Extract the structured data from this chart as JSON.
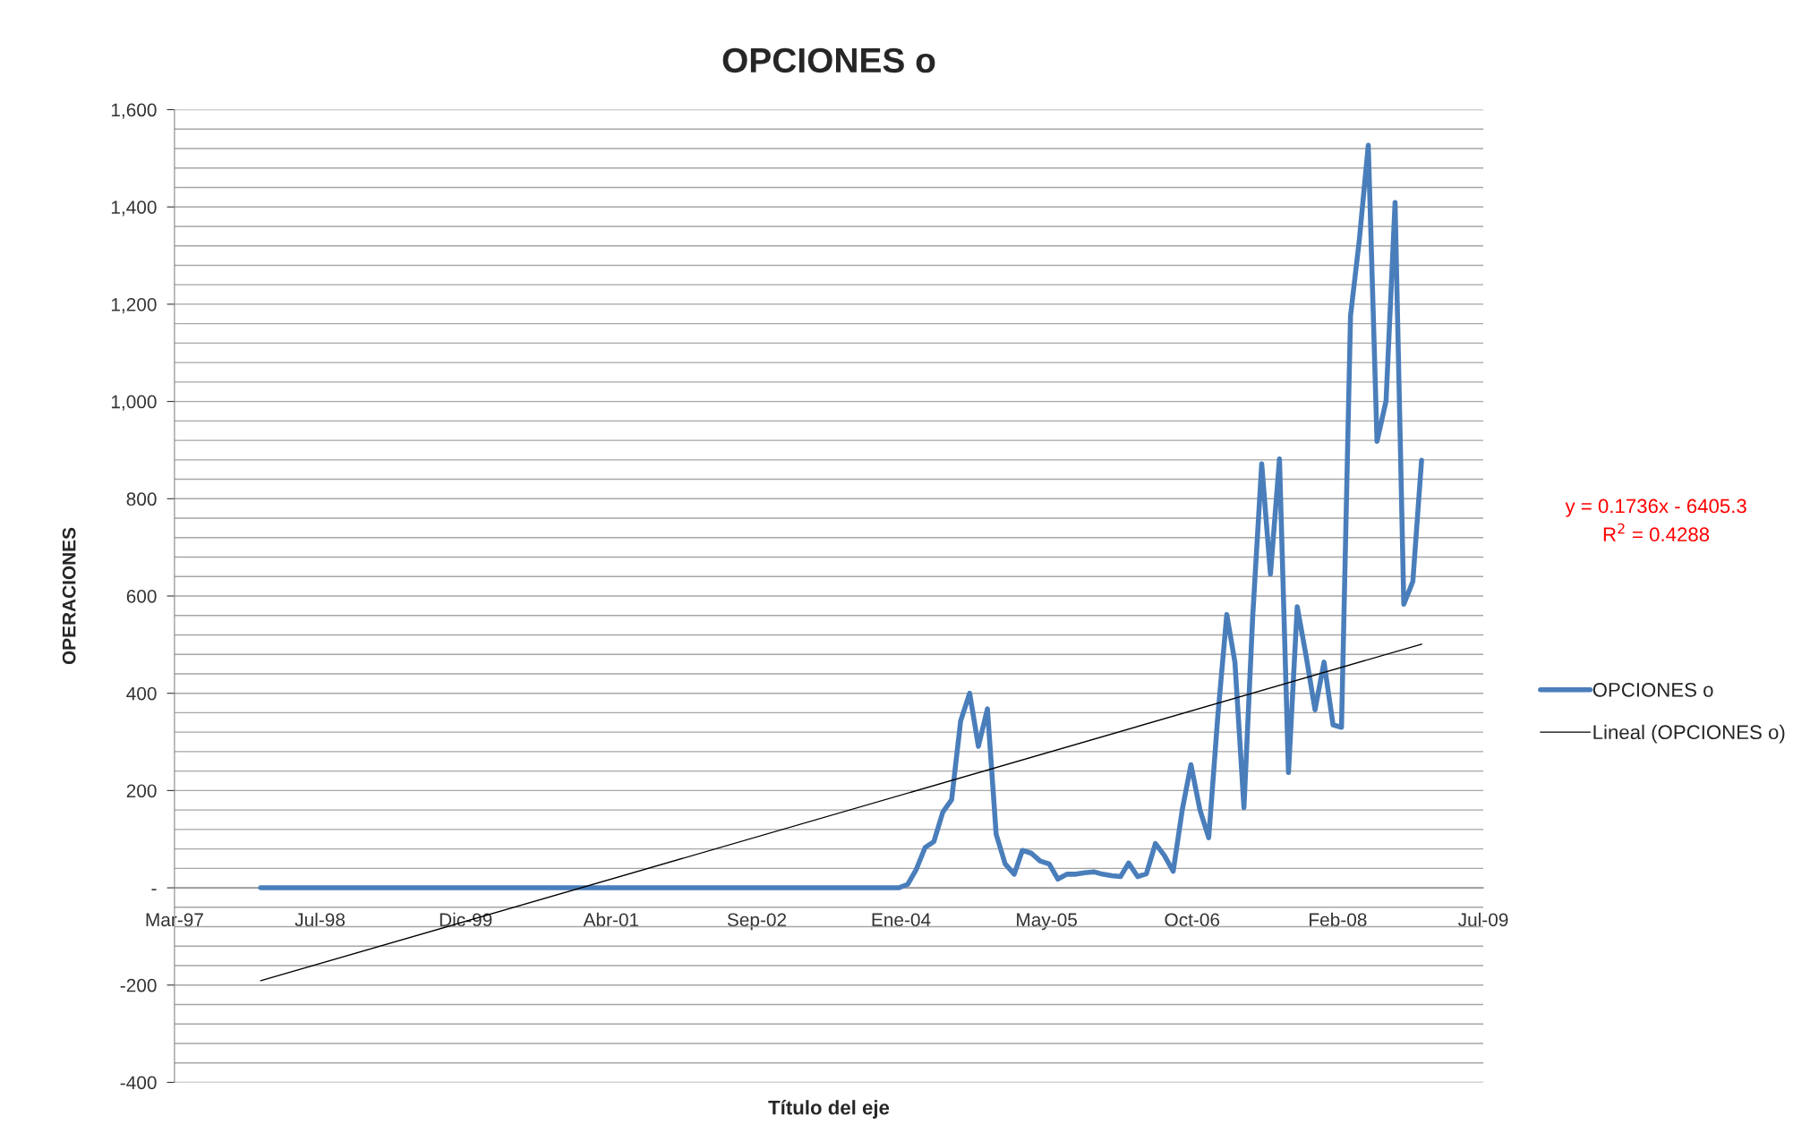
{
  "chart_data": {
    "type": "line",
    "title": "OPCIONES o",
    "xlabel": "Título del eje",
    "ylabel": "OPERACIONES",
    "x": [
      "1998-01",
      "1998-02",
      "1998-03",
      "1998-04",
      "1998-05",
      "1998-06",
      "1998-07",
      "1998-08",
      "1998-09",
      "1998-10",
      "1998-11",
      "1998-12",
      "1999-01",
      "1999-02",
      "1999-03",
      "1999-04",
      "1999-05",
      "1999-06",
      "1999-07",
      "1999-08",
      "1999-09",
      "1999-10",
      "1999-11",
      "1999-12",
      "2000-01",
      "2000-02",
      "2000-03",
      "2000-04",
      "2000-05",
      "2000-06",
      "2000-07",
      "2000-08",
      "2000-09",
      "2000-10",
      "2000-11",
      "2000-12",
      "2001-01",
      "2001-02",
      "2001-03",
      "2001-04",
      "2001-05",
      "2001-06",
      "2001-07",
      "2001-08",
      "2001-09",
      "2001-10",
      "2001-11",
      "2001-12",
      "2002-01",
      "2002-02",
      "2002-03",
      "2002-04",
      "2002-05",
      "2002-06",
      "2002-07",
      "2002-08",
      "2002-09",
      "2002-10",
      "2002-11",
      "2002-12",
      "2003-01",
      "2003-02",
      "2003-03",
      "2003-04",
      "2003-05",
      "2003-06",
      "2003-07",
      "2003-08",
      "2003-09",
      "2003-10",
      "2003-11",
      "2003-12",
      "2004-01",
      "2004-02",
      "2004-03",
      "2004-04",
      "2004-05",
      "2004-06",
      "2004-07",
      "2004-08",
      "2004-09",
      "2004-10",
      "2004-11",
      "2004-12",
      "2005-01",
      "2005-02",
      "2005-03",
      "2005-04",
      "2005-05",
      "2005-06",
      "2005-07",
      "2005-08",
      "2005-09",
      "2005-10",
      "2005-11",
      "2005-12",
      "2006-01",
      "2006-02",
      "2006-03",
      "2006-04",
      "2006-05",
      "2006-06",
      "2006-07",
      "2006-08",
      "2006-09",
      "2006-10",
      "2006-11",
      "2006-12",
      "2007-01",
      "2007-02",
      "2007-03",
      "2007-04",
      "2007-05",
      "2007-06",
      "2007-07",
      "2007-08",
      "2007-09",
      "2007-10",
      "2007-11",
      "2007-12",
      "2008-01",
      "2008-02",
      "2008-03",
      "2008-04",
      "2008-05",
      "2008-06",
      "2008-07",
      "2008-08",
      "2008-09",
      "2008-10",
      "2008-11",
      "2008-12"
    ],
    "series": [
      {
        "name": "OPCIONES o",
        "color": "#4a7ebb",
        "values": [
          0,
          0,
          0,
          0,
          0,
          0,
          0,
          0,
          0,
          0,
          0,
          0,
          0,
          0,
          0,
          0,
          0,
          0,
          0,
          0,
          0,
          0,
          0,
          0,
          0,
          0,
          0,
          0,
          0,
          0,
          0,
          0,
          0,
          0,
          0,
          0,
          0,
          0,
          0,
          0,
          0,
          0,
          0,
          0,
          0,
          0,
          0,
          0,
          0,
          0,
          0,
          0,
          0,
          0,
          0,
          0,
          0,
          0,
          0,
          0,
          0,
          0,
          0,
          0,
          0,
          0,
          0,
          0,
          0,
          0,
          0,
          0,
          0,
          7,
          37,
          83,
          95,
          156,
          181,
          343,
          400,
          291,
          368,
          110,
          49,
          28,
          77,
          71,
          55,
          49,
          18,
          28,
          28,
          31,
          33,
          28,
          25,
          23,
          51,
          23,
          29,
          91,
          67,
          34,
          160,
          253,
          160,
          103,
          351,
          562,
          464,
          165,
          557,
          872,
          645,
          882,
          237,
          578,
          475,
          366,
          464,
          335,
          330,
          1176,
          1331,
          1527,
          918,
          1001,
          1409,
          583,
          630,
          879
        ]
      },
      {
        "name": "Lineal (OPCIONES o)",
        "type": "line",
        "color": "#000000",
        "x": [
          "1998-01",
          "2008-12"
        ],
        "values": [
          -191,
          501
        ]
      }
    ],
    "xlim": [
      "1997-03-11",
      "2009-07-01"
    ],
    "xticks": [
      {
        "value": "1997-03-11",
        "label": "Mar-97"
      },
      {
        "value": "1998-07-24",
        "label": "Jul-98"
      },
      {
        "value": "1999-12-06",
        "label": "Dic-99"
      },
      {
        "value": "2001-04-19",
        "label": "Abr-01"
      },
      {
        "value": "2002-09-01",
        "label": "Sep-02"
      },
      {
        "value": "2004-01-09",
        "label": "Ene-04"
      },
      {
        "value": "2005-05-23",
        "label": "May-05"
      },
      {
        "value": "2006-10-05",
        "label": "Oct-06"
      },
      {
        "value": "2008-02-17",
        "label": "Feb-08"
      },
      {
        "value": "2009-07-01",
        "label": "Jul-09"
      }
    ],
    "ylim": [
      -400,
      1600
    ],
    "yticks": [
      {
        "value": -400,
        "label": "-400"
      },
      {
        "value": -360,
        "label": null
      },
      {
        "value": -320,
        "label": null
      },
      {
        "value": -280,
        "label": null
      },
      {
        "value": -240,
        "label": null
      },
      {
        "value": -200,
        "label": "-200"
      },
      {
        "value": -160,
        "label": null
      },
      {
        "value": -120,
        "label": null
      },
      {
        "value": -80,
        "label": null
      },
      {
        "value": -40,
        "label": null
      },
      {
        "value": 0,
        "label": "-"
      },
      {
        "value": 40,
        "label": null
      },
      {
        "value": 80,
        "label": null
      },
      {
        "value": 120,
        "label": null
      },
      {
        "value": 160,
        "label": null
      },
      {
        "value": 200,
        "label": "200"
      },
      {
        "value": 240,
        "label": null
      },
      {
        "value": 280,
        "label": null
      },
      {
        "value": 320,
        "label": null
      },
      {
        "value": 360,
        "label": null
      },
      {
        "value": 400,
        "label": "400"
      },
      {
        "value": 440,
        "label": null
      },
      {
        "value": 480,
        "label": null
      },
      {
        "value": 520,
        "label": null
      },
      {
        "value": 560,
        "label": null
      },
      {
        "value": 600,
        "label": "600"
      },
      {
        "value": 640,
        "label": null
      },
      {
        "value": 680,
        "label": null
      },
      {
        "value": 720,
        "label": null
      },
      {
        "value": 760,
        "label": null
      },
      {
        "value": 800,
        "label": "800"
      },
      {
        "value": 840,
        "label": null
      },
      {
        "value": 880,
        "label": null
      },
      {
        "value": 920,
        "label": null
      },
      {
        "value": 960,
        "label": null
      },
      {
        "value": 1000,
        "label": "1,000"
      },
      {
        "value": 1040,
        "label": null
      },
      {
        "value": 1080,
        "label": null
      },
      {
        "value": 1120,
        "label": null
      },
      {
        "value": 1160,
        "label": null
      },
      {
        "value": 1200,
        "label": "1,200"
      },
      {
        "value": 1240,
        "label": null
      },
      {
        "value": 1280,
        "label": null
      },
      {
        "value": 1320,
        "label": null
      },
      {
        "value": 1360,
        "label": null
      },
      {
        "value": 1400,
        "label": "1,400"
      },
      {
        "value": 1440,
        "label": null
      },
      {
        "value": 1480,
        "label": null
      },
      {
        "value": 1520,
        "label": null
      },
      {
        "value": 1560,
        "label": null
      },
      {
        "value": 1600,
        "label": "1,600"
      }
    ],
    "grid": "y",
    "legend": "right",
    "annotations": [
      "y = 0.1736x - 6405.3",
      "R$^{2}$ = 0.4288"
    ]
  }
}
